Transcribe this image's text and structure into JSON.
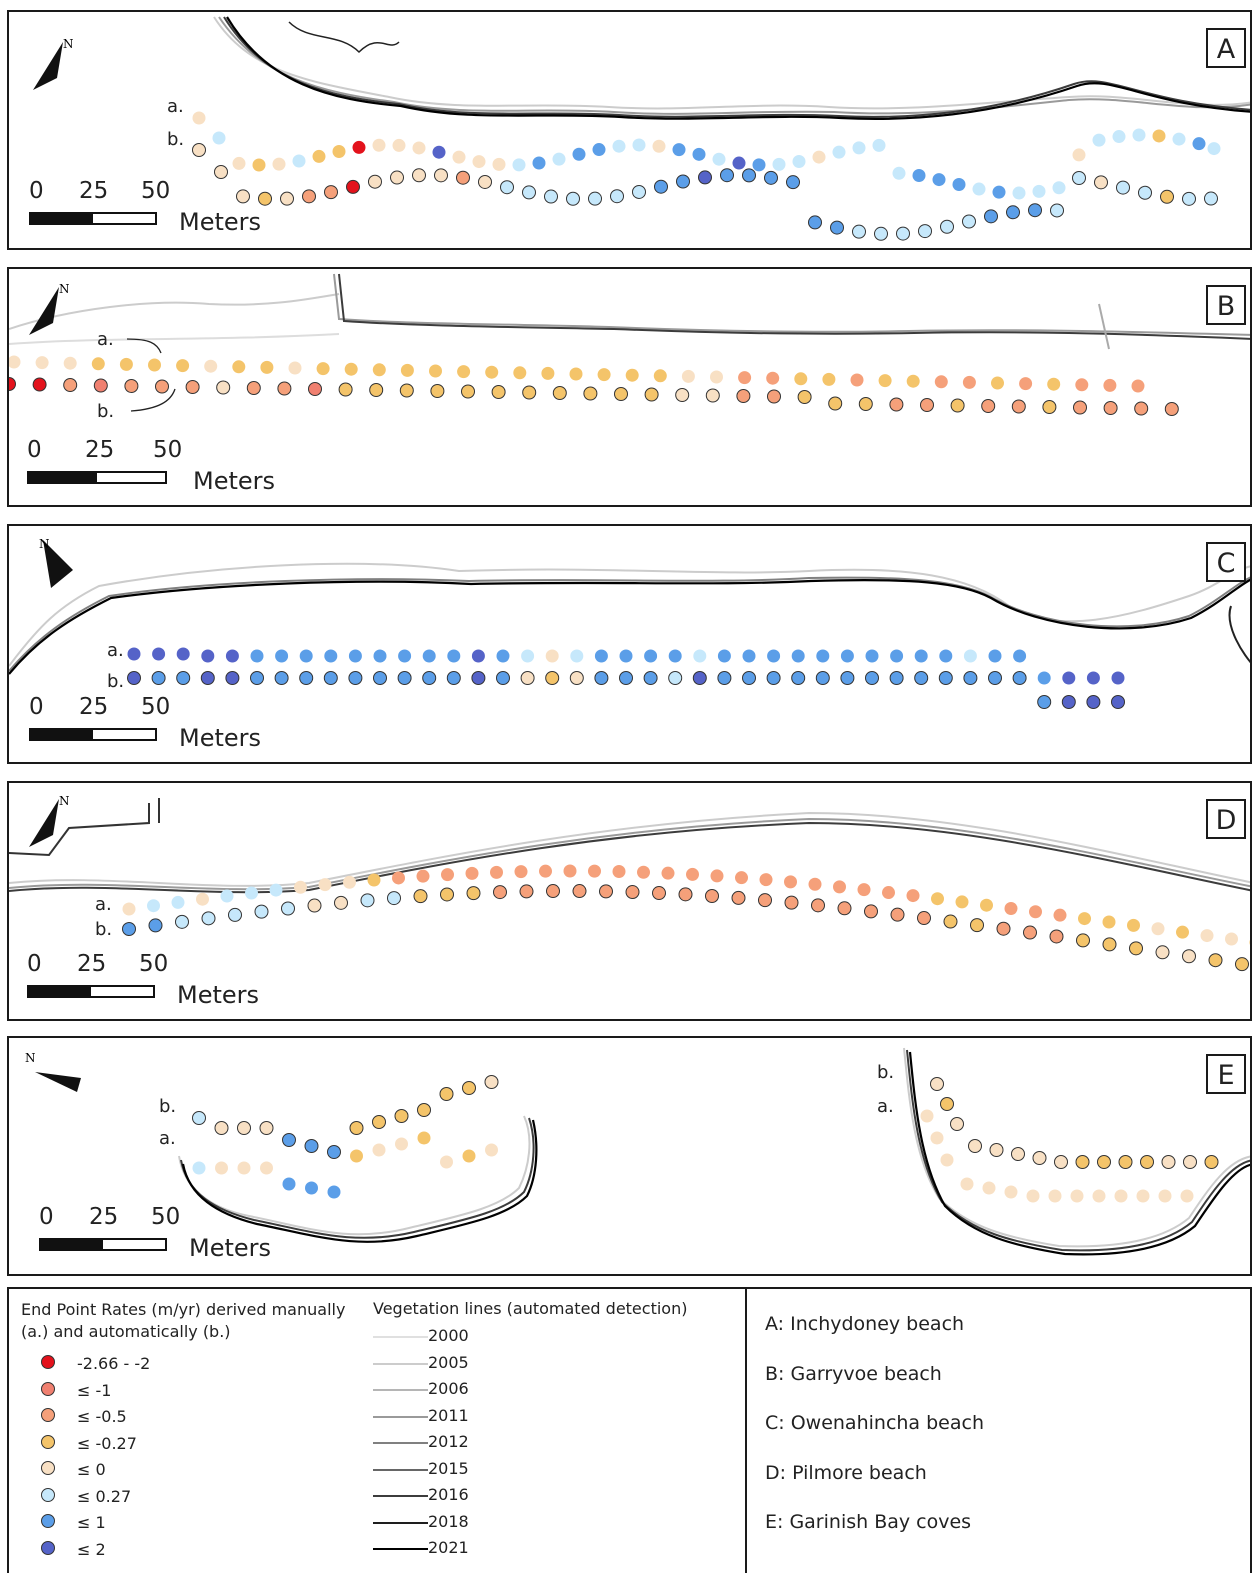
{
  "panels": [
    {
      "letter": "A",
      "scale": {
        "ticks": [
          "0",
          "25",
          "50"
        ],
        "units": "Meters"
      },
      "row_a": "a.",
      "row_b": "b."
    },
    {
      "letter": "B",
      "scale": {
        "ticks": [
          "0",
          "25",
          "50"
        ],
        "units": "Meters"
      },
      "row_a": "a.",
      "row_b": "b."
    },
    {
      "letter": "C",
      "scale": {
        "ticks": [
          "0",
          "25",
          "50"
        ],
        "units": "Meters"
      },
      "row_a": "a.",
      "row_b": "b."
    },
    {
      "letter": "D",
      "scale": {
        "ticks": [
          "0",
          "25",
          "50"
        ],
        "units": "Meters"
      },
      "row_a": "a.",
      "row_b": "b."
    },
    {
      "letter": "E",
      "scale": {
        "ticks": [
          "0",
          "25",
          "50"
        ],
        "units": "Meters"
      },
      "row_a": "a.",
      "row_b": "b.",
      "row_a2": "a.",
      "row_b2": "b."
    }
  ],
  "north_label": "N",
  "legend": {
    "epr_title": "End Point Rates (m/yr) derived manually (a.) and automatically (b.)",
    "classes": [
      {
        "label": "-2.66 - -2",
        "color": "#e3121c"
      },
      {
        "label": "≤ -1",
        "color": "#f08070"
      },
      {
        "label": "≤ -0.5",
        "color": "#f5a07a"
      },
      {
        "label": "≤ -0.27",
        "color": "#f4c46a"
      },
      {
        "label": "≤ 0",
        "color": "#f8e0c4"
      },
      {
        "label": "≤ 0.27",
        "color": "#c6e8fb"
      },
      {
        "label": "≤ 1",
        "color": "#5b9ee8"
      },
      {
        "label": "≤ 2",
        "color": "#5563c8"
      }
    ],
    "veg_title": "Vegetation lines (automated detection)",
    "veg_lines": [
      {
        "year": "2000",
        "color": "#e0e0e0"
      },
      {
        "year": "2005",
        "color": "#cccccc"
      },
      {
        "year": "2006",
        "color": "#b5b5b5"
      },
      {
        "year": "2011",
        "color": "#9a9a9a"
      },
      {
        "year": "2012",
        "color": "#808080"
      },
      {
        "year": "2015",
        "color": "#666666"
      },
      {
        "year": "2016",
        "color": "#3c3c3c"
      },
      {
        "year": "2018",
        "color": "#1e1e1e"
      },
      {
        "year": "2021",
        "color": "#000000"
      }
    ],
    "sites": [
      "A: Inchydoney beach",
      "B: Garryvoe beach",
      "C: Owenahincha beach",
      "D: Pilmore beach",
      "E: Garinish Bay coves"
    ]
  },
  "dot_rows": {
    "A_a": [
      4,
      5,
      4,
      3,
      4,
      5,
      3,
      3,
      0,
      4,
      4,
      4,
      7,
      4,
      4,
      4,
      5,
      6,
      5,
      6,
      6,
      5,
      5,
      4,
      6,
      6,
      5,
      7,
      6,
      5,
      5,
      4,
      5,
      5,
      5,
      5,
      6,
      6,
      6,
      5,
      6,
      5,
      5,
      5,
      4,
      5,
      5,
      5,
      3,
      5,
      6,
      5
    ],
    "A_b": [
      4,
      4,
      4,
      3,
      4,
      2,
      2,
      0,
      4,
      4,
      4,
      4,
      2,
      4,
      5,
      5,
      5,
      5,
      5,
      5,
      5,
      6,
      6,
      7,
      6,
      6,
      6,
      6,
      6,
      6,
      5,
      5,
      5,
      5,
      5,
      5,
      6,
      6,
      6,
      5,
      5,
      4,
      5,
      5,
      3,
      5,
      5
    ],
    "B_a": [
      4,
      4,
      4,
      3,
      3,
      3,
      3,
      4,
      3,
      3,
      4,
      3,
      3,
      3,
      3,
      3,
      3,
      3,
      3,
      3,
      3,
      3,
      3,
      3,
      4,
      4,
      2,
      2,
      3,
      3,
      2,
      3,
      3,
      2,
      2,
      3,
      2,
      3,
      2,
      2,
      2
    ],
    "B_b": [
      0,
      0,
      2,
      1,
      2,
      2,
      2,
      4,
      2,
      2,
      1,
      3,
      3,
      3,
      3,
      3,
      3,
      3,
      3,
      3,
      3,
      3,
      4,
      4,
      2,
      2,
      3,
      3,
      3,
      2,
      2,
      3,
      2,
      2,
      3,
      2,
      2,
      2,
      2
    ],
    "C_a": [
      7,
      7,
      7,
      7,
      7,
      6,
      6,
      6,
      6,
      6,
      6,
      6,
      6,
      6,
      7,
      6,
      5,
      4,
      5,
      6,
      6,
      6,
      6,
      5,
      6,
      6,
      6,
      6,
      6,
      6,
      6,
      6,
      6,
      6,
      5,
      6,
      6,
      6,
      7,
      7,
      7
    ],
    "C_b": [
      7,
      6,
      6,
      7,
      7,
      6,
      6,
      6,
      6,
      6,
      6,
      6,
      6,
      6,
      7,
      6,
      4,
      3,
      4,
      6,
      6,
      6,
      5,
      7,
      6,
      6,
      6,
      6,
      6,
      6,
      6,
      6,
      6,
      6,
      6,
      6,
      6,
      6,
      7,
      7,
      7
    ],
    "D_a": [
      4,
      5,
      5,
      4,
      5,
      5,
      5,
      4,
      4,
      4,
      3,
      2,
      2,
      2,
      2,
      2,
      2,
      2,
      2,
      2,
      2,
      2,
      2,
      2,
      2,
      2,
      2,
      2,
      2,
      2,
      2,
      2,
      2,
      3,
      3,
      3,
      2,
      2,
      2,
      3,
      3,
      3,
      4,
      3,
      4,
      4,
      3,
      4
    ],
    "D_b": [
      6,
      6,
      5,
      5,
      5,
      5,
      5,
      4,
      4,
      5,
      5,
      3,
      3,
      3,
      2,
      2,
      2,
      2,
      2,
      2,
      2,
      2,
      2,
      2,
      2,
      2,
      2,
      2,
      2,
      2,
      2,
      3,
      3,
      2,
      2,
      2,
      3,
      3,
      3,
      4,
      4,
      3,
      3,
      3
    ],
    "E_left_a": [
      5,
      4,
      4,
      4,
      6,
      6,
      6,
      3,
      4,
      4,
      3,
      4,
      3,
      4
    ],
    "E_left_b": [
      5,
      4,
      4,
      4,
      6,
      6,
      6,
      3,
      3,
      3,
      3,
      3,
      3,
      4
    ],
    "E_right_a": [
      4,
      4,
      4,
      4,
      4,
      4,
      4,
      4,
      4,
      4,
      4,
      4,
      4,
      4
    ],
    "E_right_b": [
      4,
      3,
      4,
      4,
      4,
      4,
      4,
      4,
      3,
      3,
      3,
      3,
      4,
      4,
      3
    ]
  }
}
